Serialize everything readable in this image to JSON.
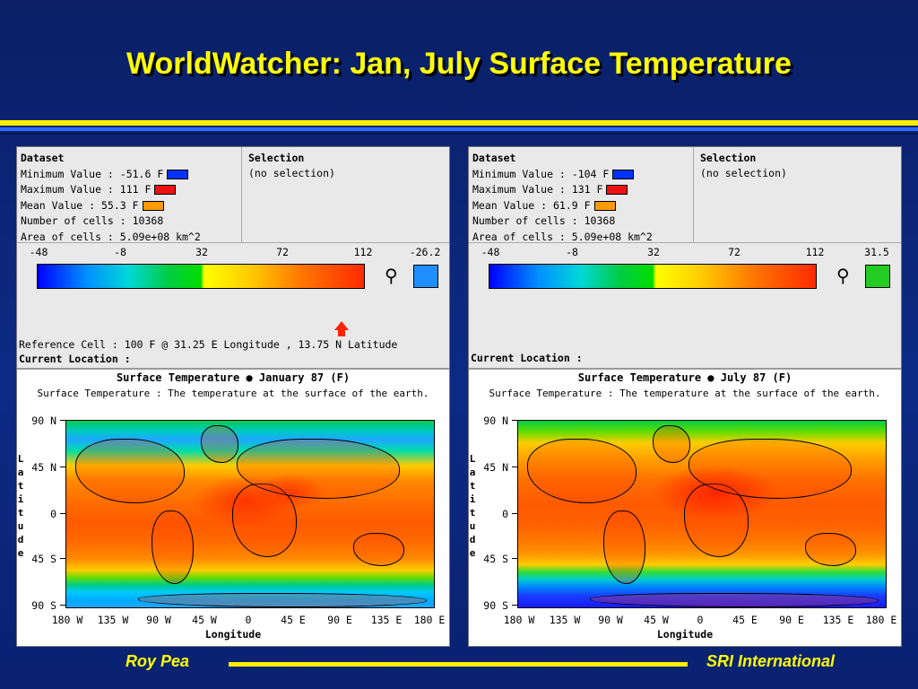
{
  "slide": {
    "title": "WorldWatcher: Jan, July Surface Temperature",
    "footer_left": "Roy Pea",
    "footer_right": "SRI International"
  },
  "panels": {
    "left": {
      "dataset_header": "Dataset",
      "min_value": "Minimum Value : -51.6 F",
      "max_value": "Maximum Value : 111 F",
      "mean_value": "Mean Value : 55.3 F",
      "num_cells": "Number of cells : 10368",
      "area_cells": "Area of cells : 5.09e+08 km^2",
      "selection_header": "Selection",
      "selection_value": "(no selection)",
      "scale_ticks": [
        "-48",
        "-8",
        "32",
        "72",
        "112"
      ],
      "current_value": "-26.2",
      "current_color": "#1f8fff",
      "reference_cell": "Reference Cell : 100 F @ 31.25 E Longitude , 13.75 N Latitude",
      "current_location": "Current Location :",
      "map_title": "Surface Temperature ● January 87 (F)",
      "map_subtitle": "Surface Temperature : The temperature at the surface of the earth.",
      "y_labels": [
        "90 N",
        "45 N",
        "0",
        "45 S",
        "90 S"
      ],
      "x_labels": [
        "180 W",
        "135 W",
        "90 W",
        "45 W",
        "0",
        "45 E",
        "90 E",
        "135 E",
        "180 E"
      ],
      "x_name": "Longitude",
      "y_name_letters": [
        "L",
        "a",
        "t",
        "i",
        "t",
        "u",
        "d",
        "e"
      ]
    },
    "right": {
      "dataset_header": "Dataset",
      "min_value": "Minimum Value : -104 F",
      "max_value": "Maximum Value : 131 F",
      "mean_value": "Mean Value : 61.9 F",
      "num_cells": "Number of cells : 10368",
      "area_cells": "Area of cells : 5.09e+08 km^2",
      "selection_header": "Selection",
      "selection_value": "(no selection)",
      "scale_ticks": [
        "-48",
        "-8",
        "32",
        "72",
        "112"
      ],
      "current_value": "31.5",
      "current_color": "#22cc22",
      "current_location": "Current Location :",
      "map_title": "Surface Temperature ● July 87 (F)",
      "map_subtitle": "Surface Temperature : The temperature at the surface of the earth.",
      "y_labels": [
        "90 N",
        "45 N",
        "0",
        "45 S",
        "90 S"
      ],
      "x_labels": [
        "180 W",
        "135 W",
        "90 W",
        "45 W",
        "0",
        "45 E",
        "90 E",
        "135 E",
        "180 E"
      ],
      "x_name": "Longitude",
      "y_name_letters": [
        "L",
        "a",
        "t",
        "i",
        "t",
        "u",
        "d",
        "e"
      ]
    }
  },
  "colors": {
    "title": "#ffff00",
    "min_swatch": "#0033ff",
    "max_swatch": "#ee1111",
    "mean_swatch": "#ff9900"
  }
}
